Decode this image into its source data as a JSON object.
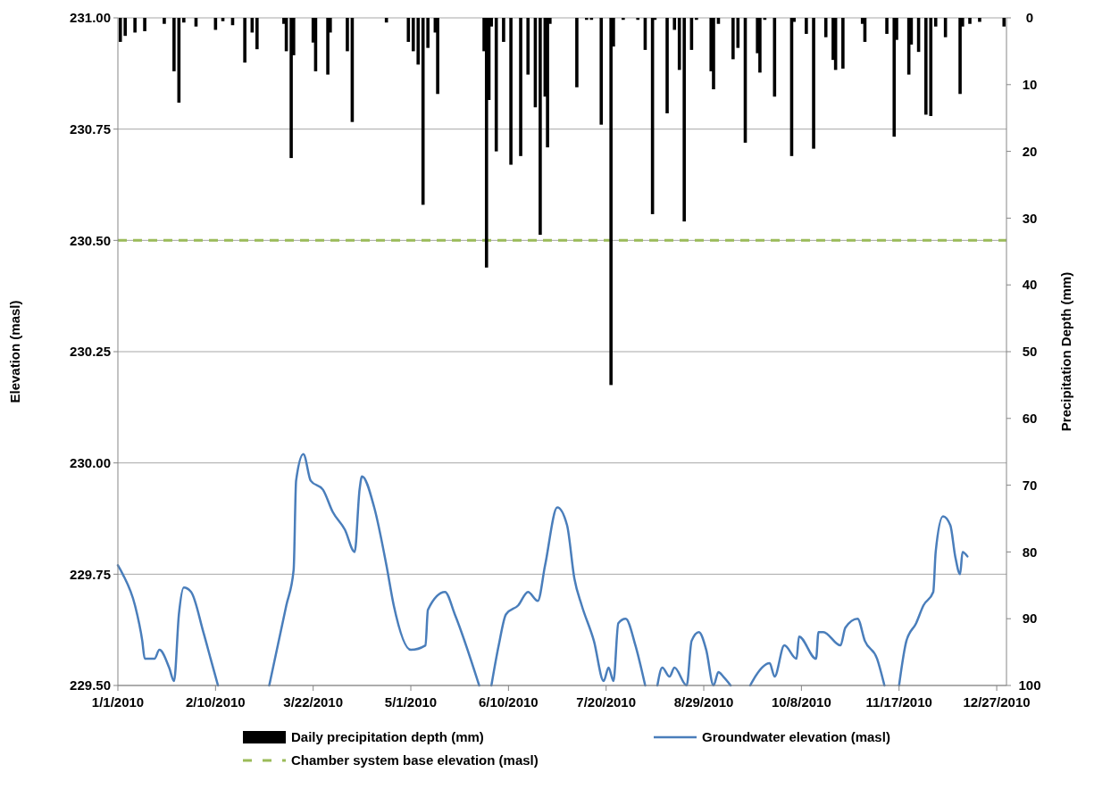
{
  "chart_data": {
    "type": "bar",
    "xlabel": null,
    "ylabel": "Elevation (masl)",
    "y2label": "Precipitation Depth (mm)",
    "xlim": [
      "2010-01-01",
      "2010-12-31"
    ],
    "xticks": [
      {
        "value": "2010-01-01",
        "label": "1/1/2010"
      },
      {
        "value": "2010-02-10",
        "label": "2/10/2010"
      },
      {
        "value": "2010-03-22",
        "label": "3/22/2010"
      },
      {
        "value": "2010-05-01",
        "label": "5/1/2010"
      },
      {
        "value": "2010-06-10",
        "label": "6/10/2010"
      },
      {
        "value": "2010-07-20",
        "label": "7/20/2010"
      },
      {
        "value": "2010-08-29",
        "label": "8/29/2010"
      },
      {
        "value": "2010-10-08",
        "label": "10/8/2010"
      },
      {
        "value": "2010-11-17",
        "label": "11/17/2010"
      },
      {
        "value": "2010-12-27",
        "label": "12/27/2010"
      }
    ],
    "ylim": [
      229.5,
      231
    ],
    "yticks": [
      {
        "value": 229.5,
        "label": "229.50"
      },
      {
        "value": 229.75,
        "label": "229.75"
      },
      {
        "value": 230,
        "label": "230.00"
      },
      {
        "value": 230.25,
        "label": "230.25"
      },
      {
        "value": 230.5,
        "label": "230.50"
      },
      {
        "value": 230.75,
        "label": "230.75"
      },
      {
        "value": 231,
        "label": "231.00"
      }
    ],
    "y2lim": [
      100,
      0
    ],
    "y2ticks": [
      0,
      10,
      20,
      30,
      40,
      50,
      60,
      70,
      80,
      90,
      100
    ],
    "grid": "y",
    "legend": "bottom",
    "ref_lines": [
      {
        "axis": "y",
        "value": 230.5,
        "label": "Chamber system base elevation (masl)",
        "color": "#9bbb59",
        "line_style": "dashed"
      }
    ],
    "series": [
      {
        "name": "Daily precipitation depth (mm)",
        "axis": "y2",
        "color": "#000000",
        "x": [
          "2010-01-02",
          "2010-01-04",
          "2010-01-08",
          "2010-01-12",
          "2010-01-20",
          "2010-01-24",
          "2010-01-26",
          "2010-01-28",
          "2010-02-02",
          "2010-02-10",
          "2010-02-13",
          "2010-02-17",
          "2010-02-22",
          "2010-02-25",
          "2010-02-27",
          "2010-03-10",
          "2010-03-11",
          "2010-03-13",
          "2010-03-14",
          "2010-03-22",
          "2010-03-23",
          "2010-03-28",
          "2010-03-29",
          "2010-04-05",
          "2010-04-07",
          "2010-04-21",
          "2010-04-30",
          "2010-05-02",
          "2010-05-04",
          "2010-05-06",
          "2010-05-08",
          "2010-05-11",
          "2010-05-12",
          "2010-05-31",
          "2010-06-01",
          "2010-06-02",
          "2010-06-03",
          "2010-06-05",
          "2010-06-08",
          "2010-06-11",
          "2010-06-15",
          "2010-06-18",
          "2010-06-21",
          "2010-06-23",
          "2010-06-25",
          "2010-06-26",
          "2010-06-27",
          "2010-07-08",
          "2010-07-12",
          "2010-07-14",
          "2010-07-18",
          "2010-07-22",
          "2010-07-23",
          "2010-07-27",
          "2010-08-02",
          "2010-08-05",
          "2010-08-08",
          "2010-08-09",
          "2010-08-14",
          "2010-08-17",
          "2010-08-19",
          "2010-08-21",
          "2010-08-24",
          "2010-08-26",
          "2010-09-01",
          "2010-09-02",
          "2010-09-04",
          "2010-09-10",
          "2010-09-12",
          "2010-09-15",
          "2010-09-20",
          "2010-09-21",
          "2010-09-23",
          "2010-09-27",
          "2010-10-04",
          "2010-10-05",
          "2010-10-10",
          "2010-10-13",
          "2010-10-18",
          "2010-10-21",
          "2010-10-22",
          "2010-10-25",
          "2010-11-02",
          "2010-11-03",
          "2010-11-12",
          "2010-11-15",
          "2010-11-16",
          "2010-11-21",
          "2010-11-22",
          "2010-11-25",
          "2010-11-28",
          "2010-11-30",
          "2010-12-02",
          "2010-12-06",
          "2010-12-12",
          "2010-12-13",
          "2010-12-16",
          "2010-12-20",
          "2010-12-30"
        ],
        "values": [
          3.6,
          2.7,
          2.2,
          2.0,
          0.9,
          8,
          12.7,
          0.7,
          1.3,
          1.8,
          0.5,
          1.1,
          6.7,
          2.2,
          4.7,
          0.9,
          5,
          21,
          5.6,
          3.7,
          8,
          8.5,
          2.2,
          5,
          15.6,
          0.7,
          3.6,
          5,
          7,
          28,
          4.5,
          2.2,
          11.4,
          5,
          37.4,
          12.3,
          1.3,
          20,
          3.6,
          22,
          20.7,
          8.5,
          13.4,
          32.5,
          11.8,
          19.4,
          0.9,
          10.4,
          0.3,
          0.3,
          16,
          55,
          4.3,
          0.3,
          0.3,
          4.8,
          29.4,
          0.3,
          14.3,
          1.8,
          7.8,
          30.5,
          4.8,
          0.3,
          8,
          10.7,
          0.9,
          6.2,
          4.5,
          18.7,
          5.3,
          8.2,
          0.3,
          11.8,
          20.7,
          0.6,
          2.4,
          19.6,
          2.9,
          6.3,
          7.8,
          7.6,
          0.9,
          3.6,
          2.4,
          17.8,
          3.3,
          8.5,
          4,
          5.1,
          14.5,
          14.7,
          1.3,
          2.9,
          11.4,
          1.3,
          0.9,
          0.6,
          1.3
        ]
      },
      {
        "name": "Groundwater elevation (masl)",
        "type": "line",
        "axis": "y",
        "color": "#4a7ebb",
        "x": [
          "2010-01-01",
          "2010-01-03",
          "2010-01-08",
          "2010-01-11",
          "2010-01-12",
          "2010-01-16",
          "2010-01-18",
          "2010-01-22",
          "2010-01-24",
          "2010-01-26",
          "2010-01-28",
          "2010-01-31",
          "2010-02-05",
          "2010-02-08",
          "2010-02-11",
          "2010-02-20",
          "2010-03-04",
          "2010-03-11",
          "2010-03-14",
          "2010-03-15",
          "2010-03-18",
          "2010-03-21",
          "2010-03-26",
          "2010-03-30",
          "2010-04-04",
          "2010-04-08",
          "2010-04-10",
          "2010-04-11",
          "2010-04-16",
          "2010-04-21",
          "2010-04-24",
          "2010-05-01",
          "2010-05-07",
          "2010-05-08",
          "2010-05-15",
          "2010-05-19",
          "2010-05-29",
          "2010-05-31",
          "2010-06-03",
          "2010-06-06",
          "2010-06-09",
          "2010-06-14",
          "2010-06-18",
          "2010-06-22",
          "2010-06-25",
          "2010-06-30",
          "2010-07-04",
          "2010-07-07",
          "2010-07-10",
          "2010-07-15",
          "2010-07-19",
          "2010-07-21",
          "2010-07-23",
          "2010-07-25",
          "2010-07-28",
          "2010-08-01",
          "2010-08-05",
          "2010-08-07",
          "2010-08-10",
          "2010-08-12",
          "2010-08-15",
          "2010-08-17",
          "2010-08-22",
          "2010-08-24",
          "2010-08-27",
          "2010-08-30",
          "2010-09-02",
          "2010-09-04",
          "2010-09-06",
          "2010-09-09",
          "2010-09-13",
          "2010-09-17",
          "2010-09-18",
          "2010-09-25",
          "2010-09-27",
          "2010-10-01",
          "2010-10-06",
          "2010-10-07",
          "2010-10-14",
          "2010-10-15",
          "2010-10-17",
          "2010-10-24",
          "2010-10-26",
          "2010-10-31",
          "2010-11-03",
          "2010-11-08",
          "2010-11-11",
          "2010-11-14",
          "2010-11-17",
          "2010-11-20",
          "2010-11-24",
          "2010-11-27",
          "2010-12-01",
          "2010-12-02",
          "2010-12-05",
          "2010-12-08",
          "2010-12-10",
          "2010-12-12",
          "2010-12-13",
          "2010-12-15"
        ],
        "values": [
          229.77,
          229.75,
          229.68,
          229.6,
          229.56,
          229.56,
          229.58,
          229.54,
          229.51,
          229.66,
          229.72,
          229.71,
          229.62,
          229.56,
          229.5,
          null,
          229.5,
          229.68,
          229.76,
          229.96,
          230.02,
          229.96,
          229.94,
          229.89,
          229.85,
          229.8,
          229.94,
          229.97,
          229.9,
          229.77,
          229.68,
          229.58,
          229.59,
          229.67,
          229.71,
          229.66,
          229.5,
          null,
          229.5,
          229.59,
          229.66,
          229.68,
          229.71,
          229.69,
          229.77,
          229.9,
          229.86,
          229.74,
          229.68,
          229.6,
          229.51,
          229.54,
          229.51,
          229.64,
          229.65,
          229.59,
          229.5,
          null,
          229.5,
          229.54,
          229.52,
          229.54,
          229.5,
          229.6,
          229.62,
          229.58,
          229.5,
          229.53,
          229.52,
          229.5,
          null,
          229.5,
          229.51,
          229.55,
          229.52,
          229.59,
          229.56,
          229.61,
          229.56,
          229.62,
          229.62,
          229.59,
          229.63,
          229.65,
          229.6,
          229.56,
          229.5,
          null,
          229.5,
          229.6,
          229.64,
          229.68,
          229.71,
          229.8,
          229.88,
          229.86,
          229.79,
          229.75,
          229.8,
          229.79
        ]
      }
    ]
  }
}
